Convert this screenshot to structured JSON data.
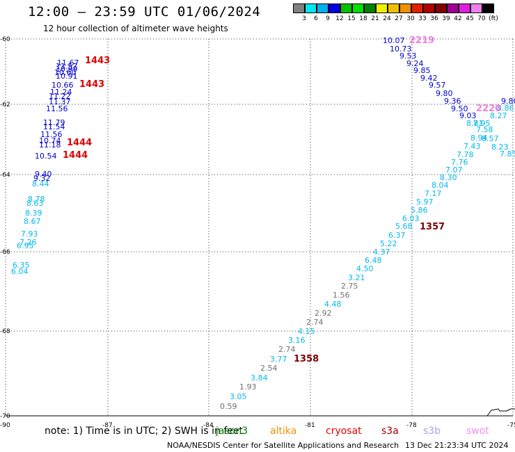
{
  "title": "12:00 – 23:59 UTC 01/06/2024",
  "subtitle": "12 hour collection of altimeter wave heights",
  "legend": {
    "colors": [
      "#808080",
      "#00e8f0",
      "#00b0f0",
      "#0000e0",
      "#00c000",
      "#00e000",
      "#008000",
      "#f0f000",
      "#f0c000",
      "#f09000",
      "#e02000",
      "#b00000",
      "#800000",
      "#a00090",
      "#e020e0",
      "#f080f0",
      "#000000"
    ],
    "labels": [
      "3",
      "6",
      "9",
      "12",
      "15",
      "18",
      "21",
      "24",
      "27",
      "30",
      "33",
      "36",
      "39",
      "42",
      "45",
      "70",
      "(ft)"
    ]
  },
  "axes": {
    "lon_labels": [
      "-90",
      "-87",
      "-84",
      "-81",
      "-78",
      "-75"
    ],
    "lat_labels": [
      "-60",
      "-62",
      "-64",
      "-66",
      "-68",
      "-70"
    ]
  },
  "track_west": [
    {
      "text": "11.67",
      "c": "dblue"
    },
    {
      "text": "11.57",
      "c": "dblue"
    },
    {
      "text": "10.99",
      "c": "dblue"
    },
    {
      "text": "10.60",
      "c": "dblue"
    },
    {
      "text": "10.91",
      "c": "dblue"
    },
    {
      "text": "10.66",
      "c": "dblue"
    },
    {
      "text": "11.24",
      "c": "dblue"
    },
    {
      "text": "11.22",
      "c": "dblue"
    },
    {
      "text": "11.37",
      "c": "dblue"
    },
    {
      "text": "11.56",
      "c": "dblue"
    },
    {
      "text": "11.79",
      "c": "dblue"
    },
    {
      "text": "11.54",
      "c": "dblue"
    },
    {
      "text": "11.56",
      "c": "dblue"
    },
    {
      "text": "10.74",
      "c": "dblue"
    },
    {
      "text": "11.18",
      "c": "dblue"
    },
    {
      "text": "10.54",
      "c": "dblue"
    },
    {
      "text": "9.40",
      "c": "dblue"
    },
    {
      "text": "9.32",
      "c": "dblue"
    },
    {
      "text": "8.44",
      "c": "lblue"
    },
    {
      "text": "8.78",
      "c": "lblue"
    },
    {
      "text": "8.63",
      "c": "lblue"
    },
    {
      "text": "8.39",
      "c": "lblue"
    },
    {
      "text": "8.67",
      "c": "lblue"
    },
    {
      "text": "7.93",
      "c": "lblue"
    },
    {
      "text": "7.26",
      "c": "lblue"
    },
    {
      "text": "6.95",
      "c": "lblue"
    },
    {
      "text": "6.35",
      "c": "lblue"
    },
    {
      "text": "6.04",
      "c": "lblue"
    }
  ],
  "track_east": [
    {
      "text": "10.07",
      "c": "dblue"
    },
    {
      "text": "10.73",
      "c": "dblue"
    },
    {
      "text": "9.53",
      "c": "dblue"
    },
    {
      "text": "9.24",
      "c": "dblue"
    },
    {
      "text": "9.85",
      "c": "dblue"
    },
    {
      "text": "9.42",
      "c": "dblue"
    },
    {
      "text": "9.57",
      "c": "dblue"
    },
    {
      "text": "9.80",
      "c": "dblue"
    },
    {
      "text": "9.36",
      "c": "dblue"
    },
    {
      "text": "9.50",
      "c": "dblue"
    },
    {
      "text": "9.03",
      "c": "dblue"
    },
    {
      "text": "8.81",
      "c": "lblue"
    },
    {
      "text": "7.95",
      "c": "lblue"
    },
    {
      "text": "7.58",
      "c": "lblue"
    },
    {
      "text": "8.94",
      "c": "lblue"
    },
    {
      "text": "8.57",
      "c": "lblue"
    },
    {
      "text": "7.43",
      "c": "lblue"
    },
    {
      "text": "7.78",
      "c": "lblue"
    },
    {
      "text": "7.76",
      "c": "lblue"
    },
    {
      "text": "7.07",
      "c": "lblue"
    },
    {
      "text": "8.30",
      "c": "lblue"
    },
    {
      "text": "8.04",
      "c": "lblue"
    },
    {
      "text": "7.17",
      "c": "lblue"
    },
    {
      "text": "5.97",
      "c": "lblue"
    },
    {
      "text": "5.86",
      "c": "lblue"
    },
    {
      "text": "6.03",
      "c": "lblue"
    },
    {
      "text": "5.68",
      "c": "lblue"
    },
    {
      "text": "6.37",
      "c": "lblue"
    },
    {
      "text": "5.22",
      "c": "lblue"
    },
    {
      "text": "4.37",
      "c": "lblue"
    },
    {
      "text": "6.48",
      "c": "lblue"
    },
    {
      "text": "4.50",
      "c": "lblue"
    },
    {
      "text": "3.21",
      "c": "lblue"
    },
    {
      "text": "2.75",
      "c": "grey"
    },
    {
      "text": "1.56",
      "c": "grey"
    },
    {
      "text": "4.48",
      "c": "lblue"
    },
    {
      "text": "2.92",
      "c": "grey"
    },
    {
      "text": "2.74",
      "c": "grey"
    },
    {
      "text": "4.15",
      "c": "lblue"
    },
    {
      "text": "3.16",
      "c": "lblue"
    },
    {
      "text": "2.74",
      "c": "grey"
    },
    {
      "text": "3.77",
      "c": "lblue"
    },
    {
      "text": "2.54",
      "c": "grey"
    },
    {
      "text": "3.84",
      "c": "lblue"
    },
    {
      "text": "1.93",
      "c": "grey"
    },
    {
      "text": "3.05",
      "c": "lblue"
    },
    {
      "text": "0.59",
      "c": "grey"
    }
  ],
  "track_far_east": [
    {
      "text": "8.27",
      "c": "lblue"
    },
    {
      "text": "8.23",
      "c": "lblue"
    },
    {
      "text": "7.85",
      "c": "lblue"
    },
    {
      "text": "9.80",
      "c": "dblue"
    },
    {
      "text": "8.86",
      "c": "lblue"
    }
  ],
  "time_labels": [
    "1443",
    "1443",
    "1444",
    "1444",
    "2219",
    "2220",
    "1357",
    "1358"
  ],
  "note": "note:  1) Time is in UTC; 2) SWH is in feet",
  "satellites": [
    {
      "name": "jason3",
      "color": "#008000"
    },
    {
      "name": "altika",
      "color": "#f09000"
    },
    {
      "name": "cryosat",
      "color": "#e00000"
    },
    {
      "name": "s3a",
      "color": "#a00000"
    },
    {
      "name": "s3b",
      "color": "#b0a0e8"
    },
    {
      "name": "swot",
      "color": "#f090e8"
    }
  ],
  "credit": "NOAA/NESDIS Center for Satellite Applications and Research",
  "timestamp": "13 Dec 21:23:34 UTC 2024"
}
